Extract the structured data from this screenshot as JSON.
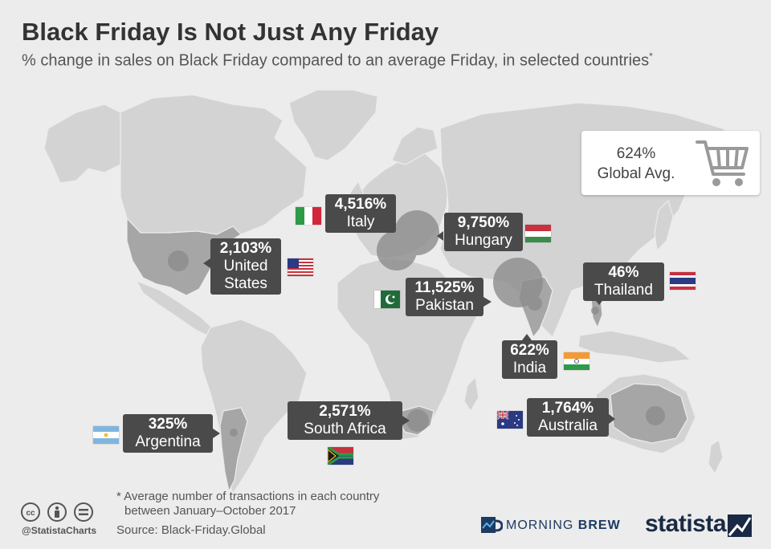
{
  "title": "Black Friday Is Not Just Any Friday",
  "subtitle": "% change in sales on Black Friday compared to an average Friday, in selected countries",
  "subtitle_mark": "*",
  "global_avg": {
    "value": "624%",
    "label": "Global Avg."
  },
  "countries": {
    "italy": {
      "value": "4,516%",
      "name": "Italy"
    },
    "hungary": {
      "value": "9,750%",
      "name": "Hungary"
    },
    "united_states": {
      "value": "2,103%",
      "name_line1": "United",
      "name_line2": "States"
    },
    "pakistan": {
      "value": "11,525%",
      "name": "Pakistan"
    },
    "thailand": {
      "value": "46%",
      "name": "Thailand"
    },
    "india": {
      "value": "622%",
      "name": "India"
    },
    "south_africa": {
      "value": "2,571%",
      "name": "South Africa"
    },
    "argentina": {
      "value": "325%",
      "name": "Argentina"
    },
    "australia": {
      "value": "1,764%",
      "name": "Australia"
    }
  },
  "chart_data": {
    "type": "table",
    "title": "Black Friday Is Not Just Any Friday",
    "subtitle": "% change in sales on Black Friday compared to an average Friday, in selected countries",
    "categories": [
      "Pakistan",
      "Hungary",
      "Italy",
      "South Africa",
      "United States",
      "Australia",
      "India",
      "Argentina",
      "Thailand"
    ],
    "values": [
      11525,
      9750,
      4516,
      2571,
      2103,
      1764,
      622,
      325,
      46
    ],
    "global_average": 624,
    "unit": "%"
  },
  "footnote_line1": "* Average number of transactions in each country",
  "footnote_line2": "between January–October 2017",
  "source": "Source: Black-Friday.Global",
  "handle": "@StatistaCharts",
  "morning_brew_a": "MORNING",
  "morning_brew_b": "BREW",
  "statista": "statista",
  "colors": {
    "background": "#ececec",
    "land": "#d3d3d3",
    "highlight": "#a6a6a6",
    "callout": "#4a4a4a",
    "dot": "#8c8c8c"
  }
}
